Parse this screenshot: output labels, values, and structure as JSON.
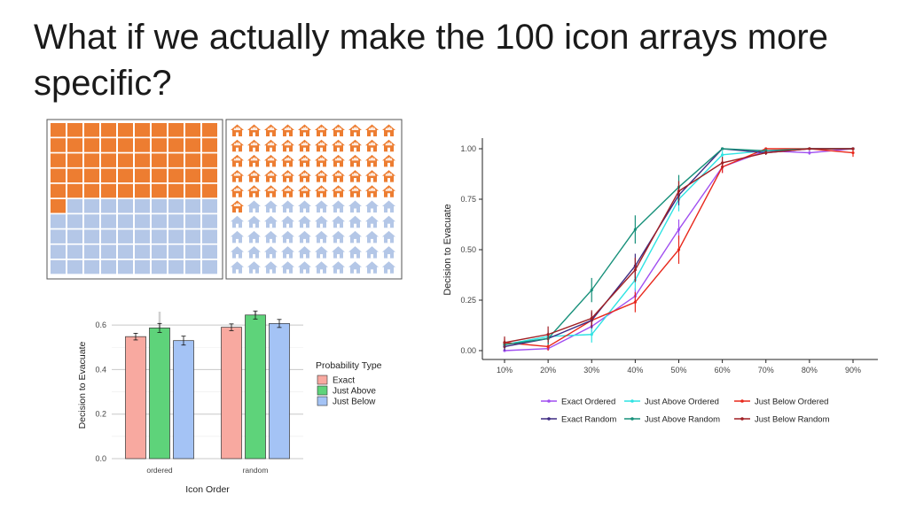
{
  "slide": {
    "title": "What if we actually make the 100 icon arrays more specific?"
  },
  "icon_arrays": {
    "total_icons": 100,
    "highlighted_icons": 51,
    "highlight_color": "#ed7d31",
    "base_color": "#b4c7e7",
    "panels": [
      {
        "icon": "square-icon"
      },
      {
        "icon": "house-icon"
      }
    ]
  },
  "chart_data": [
    {
      "type": "bar",
      "xlabel": "Icon Order",
      "ylabel": "Decision to Evacuate",
      "ylim": [
        0,
        0.66
      ],
      "y_ticks": [
        "0.0",
        "0.2",
        "0.4",
        "0.6"
      ],
      "categories": [
        "ordered",
        "random"
      ],
      "legend_title": "Probability Type",
      "legend_position": "right",
      "grid": true,
      "series": [
        {
          "name": "Exact",
          "color": "#f8a9a0",
          "values": [
            0.548,
            0.59
          ],
          "errors": [
            0.015,
            0.015
          ]
        },
        {
          "name": "Just Above",
          "color": "#5ed37a",
          "values": [
            0.587,
            0.645
          ],
          "errors": [
            0.02,
            0.018
          ]
        },
        {
          "name": "Just Below",
          "color": "#a4c3f5",
          "values": [
            0.53,
            0.607
          ],
          "errors": [
            0.02,
            0.018
          ]
        }
      ]
    },
    {
      "type": "line",
      "ylabel": "Decision to Evacuate",
      "ylim": [
        0,
        1
      ],
      "y_ticks": [
        "0.00",
        "0.25",
        "0.50",
        "0.75",
        "1.00"
      ],
      "x": [
        "10%",
        "20%",
        "30%",
        "40%",
        "50%",
        "60%",
        "70%",
        "80%",
        "90%"
      ],
      "legend_position": "bottom",
      "grid": false,
      "series": [
        {
          "name": "Exact Ordered",
          "color": "#a04ef0",
          "values": [
            0.0,
            0.01,
            0.12,
            0.27,
            0.6,
            0.91,
            0.99,
            0.98,
            1.0
          ],
          "errors": [
            0.01,
            0.01,
            0.03,
            0.04,
            0.05,
            0.03,
            0.01,
            0.01,
            0.0
          ]
        },
        {
          "name": "Just Above Ordered",
          "color": "#2fe3e3",
          "values": [
            0.03,
            0.07,
            0.08,
            0.35,
            0.75,
            0.97,
            0.99,
            1.0,
            1.0
          ],
          "errors": [
            0.02,
            0.03,
            0.04,
            0.05,
            0.06,
            0.02,
            0.01,
            0.0,
            0.0
          ]
        },
        {
          "name": "Just Below Ordered",
          "color": "#e8281c",
          "values": [
            0.04,
            0.02,
            0.15,
            0.24,
            0.5,
            0.91,
            1.0,
            1.0,
            0.98
          ],
          "errors": [
            0.02,
            0.02,
            0.04,
            0.05,
            0.07,
            0.03,
            0.0,
            0.0,
            0.02
          ]
        },
        {
          "name": "Exact Random",
          "color": "#3e2a82",
          "values": [
            0.02,
            0.06,
            0.15,
            0.42,
            0.77,
            1.0,
            0.98,
            1.0,
            1.0
          ],
          "errors": [
            0.02,
            0.03,
            0.04,
            0.06,
            0.05,
            0.0,
            0.01,
            0.0,
            0.0
          ]
        },
        {
          "name": "Just Above Random",
          "color": "#17907a",
          "values": [
            0.03,
            0.06,
            0.3,
            0.6,
            0.81,
            1.0,
            0.99,
            1.0,
            1.0
          ],
          "errors": [
            0.02,
            0.03,
            0.06,
            0.07,
            0.06,
            0.0,
            0.01,
            0.0,
            0.0
          ]
        },
        {
          "name": "Just Below Random",
          "color": "#a01f24",
          "values": [
            0.04,
            0.08,
            0.16,
            0.4,
            0.79,
            0.93,
            0.98,
            1.0,
            1.0
          ],
          "errors": [
            0.03,
            0.04,
            0.04,
            0.06,
            0.05,
            0.03,
            0.01,
            0.0,
            0.0
          ]
        }
      ]
    }
  ]
}
